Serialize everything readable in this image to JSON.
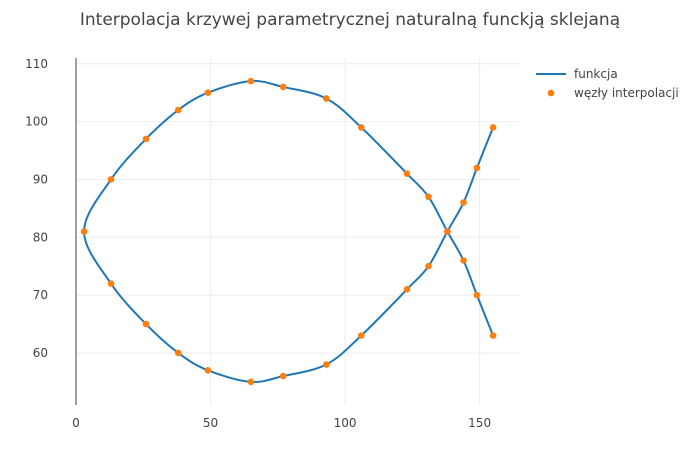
{
  "chart_data": {
    "type": "line",
    "title": "Interpolacja krzywej parametrycznej naturalną funckją sklejaną",
    "xlabel": "",
    "ylabel": "",
    "xlim": [
      0,
      165
    ],
    "ylim": [
      51,
      111
    ],
    "x_ticks": [
      0,
      50,
      100,
      150
    ],
    "y_ticks": [
      60,
      70,
      80,
      90,
      100,
      110
    ],
    "grid": true,
    "legend_position": "top-right",
    "colors": {
      "line": "#1f77b4",
      "nodes": "#ff7f0e",
      "grid": "#eeeeee",
      "axis": "#444444"
    },
    "series": [
      {
        "name": "funkcja",
        "kind": "line",
        "points": [
          [
            155,
            99
          ],
          [
            149,
            92
          ],
          [
            144,
            86
          ],
          [
            138,
            81
          ],
          [
            131,
            75
          ],
          [
            123,
            71
          ],
          [
            106,
            63
          ],
          [
            93,
            58
          ],
          [
            77,
            56
          ],
          [
            65,
            55
          ],
          [
            49,
            57
          ],
          [
            38,
            60
          ],
          [
            26,
            65
          ],
          [
            13,
            72
          ],
          [
            3,
            81
          ],
          [
            13,
            90
          ],
          [
            26,
            97
          ],
          [
            38,
            102
          ],
          [
            49,
            105
          ],
          [
            65,
            107
          ],
          [
            77,
            106
          ],
          [
            93,
            104
          ],
          [
            106,
            99
          ],
          [
            123,
            91
          ],
          [
            131,
            87
          ],
          [
            138,
            81
          ],
          [
            144,
            76
          ],
          [
            149,
            70
          ],
          [
            155,
            63
          ]
        ]
      },
      {
        "name": "węzły interpolacji",
        "kind": "markers",
        "points": [
          [
            155,
            99
          ],
          [
            149,
            92
          ],
          [
            144,
            86
          ],
          [
            138,
            81
          ],
          [
            131,
            75
          ],
          [
            123,
            71
          ],
          [
            106,
            63
          ],
          [
            93,
            58
          ],
          [
            77,
            56
          ],
          [
            65,
            55
          ],
          [
            49,
            57
          ],
          [
            38,
            60
          ],
          [
            26,
            65
          ],
          [
            13,
            72
          ],
          [
            3,
            81
          ],
          [
            13,
            90
          ],
          [
            26,
            97
          ],
          [
            38,
            102
          ],
          [
            49,
            105
          ],
          [
            65,
            107
          ],
          [
            77,
            106
          ],
          [
            93,
            104
          ],
          [
            106,
            99
          ],
          [
            123,
            91
          ],
          [
            131,
            87
          ],
          [
            138,
            81
          ],
          [
            144,
            76
          ],
          [
            149,
            70
          ],
          [
            155,
            63
          ]
        ]
      }
    ]
  }
}
